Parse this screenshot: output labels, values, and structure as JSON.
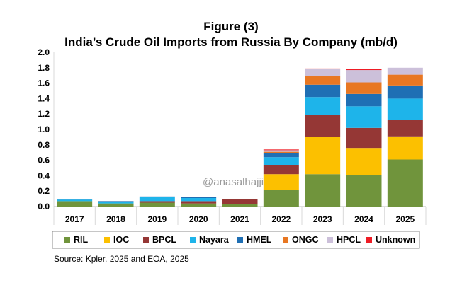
{
  "chart_data": {
    "type": "bar",
    "stacked": true,
    "title_line1": "Figure (3)",
    "title_line2": "India’s Crude Oil Imports from Russia By Company (mb/d)",
    "categories": [
      "2017",
      "2018",
      "2019",
      "2020",
      "2021",
      "2022",
      "2023",
      "2024",
      "2025"
    ],
    "yticks": [
      "0.0",
      "0.2",
      "0.4",
      "0.6",
      "0.8",
      "1.0",
      "1.2",
      "1.4",
      "1.6",
      "1.8",
      "2.0"
    ],
    "ylim": [
      0,
      2.0
    ],
    "series": [
      {
        "name": "RIL",
        "color": "#70943c",
        "values": [
          0.07,
          0.04,
          0.05,
          0.04,
          0.03,
          0.22,
          0.42,
          0.41,
          0.61
        ]
      },
      {
        "name": "IOC",
        "color": "#fcc000",
        "values": [
          0.0,
          0.0,
          0.0,
          0.0,
          0.0,
          0.2,
          0.48,
          0.35,
          0.3
        ]
      },
      {
        "name": "BPCL",
        "color": "#953735",
        "values": [
          0.0,
          0.0,
          0.02,
          0.03,
          0.07,
          0.12,
          0.29,
          0.26,
          0.21
        ]
      },
      {
        "name": "Nayara",
        "color": "#1eb4ea",
        "values": [
          0.02,
          0.02,
          0.05,
          0.04,
          0.0,
          0.1,
          0.23,
          0.28,
          0.28
        ]
      },
      {
        "name": "HMEL",
        "color": "#1f6fb4",
        "values": [
          0.01,
          0.01,
          0.01,
          0.01,
          0.0,
          0.05,
          0.16,
          0.16,
          0.17
        ]
      },
      {
        "name": "ONGC",
        "color": "#e87722",
        "values": [
          0.0,
          0.0,
          0.0,
          0.0,
          0.0,
          0.02,
          0.11,
          0.15,
          0.14
        ]
      },
      {
        "name": "HPCL",
        "color": "#ccc0da",
        "values": [
          0.0,
          0.0,
          0.0,
          0.0,
          0.0,
          0.02,
          0.09,
          0.16,
          0.09
        ]
      },
      {
        "name": "Unknown",
        "color": "#ee1c25",
        "values": [
          0.0,
          0.0,
          0.0,
          0.0,
          0.0,
          0.01,
          0.01,
          0.01,
          0.0
        ]
      }
    ],
    "legend_position": "bottom",
    "watermark": "@anasalhajji",
    "source": "Source: Kpler, 2025 and EOA, 2025"
  }
}
